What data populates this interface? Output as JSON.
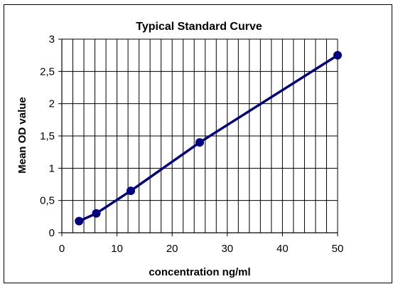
{
  "chart_data": {
    "type": "line",
    "title": "Typical Standard Curve",
    "xlabel": "concentration ng/ml",
    "ylabel": "Mean OD value",
    "xlim": [
      0,
      50
    ],
    "ylim": [
      0,
      3
    ],
    "x_ticks": [
      "0",
      "10",
      "20",
      "30",
      "40",
      "50"
    ],
    "y_ticks": [
      "0",
      "0,5",
      "1",
      "1,5",
      "2",
      "2,5",
      "3"
    ],
    "grid": true,
    "legend": "none",
    "series": [
      {
        "color": "#000080",
        "x": [
          3.125,
          6.25,
          12.5,
          25,
          50
        ],
        "y": [
          0.18,
          0.3,
          0.65,
          1.4,
          2.75
        ]
      }
    ]
  }
}
